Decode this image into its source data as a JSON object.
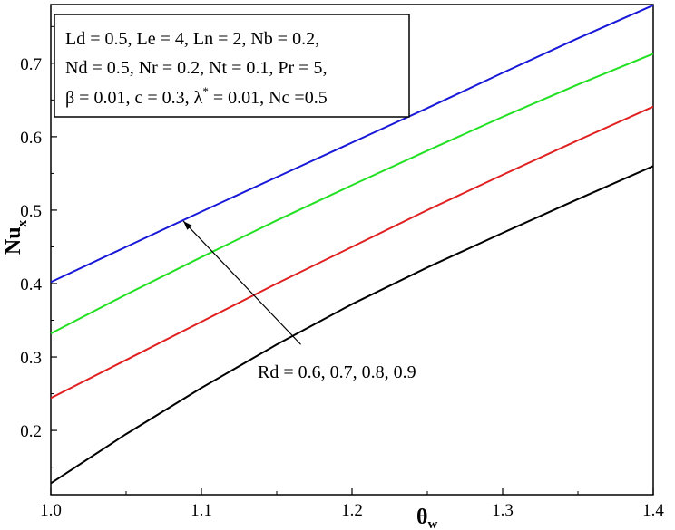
{
  "chart_data": {
    "type": "line",
    "xlabel": {
      "main": "θ",
      "sub": "w"
    },
    "ylabel": {
      "main": "Nu",
      "sub": "x"
    },
    "xlim": [
      1.0,
      1.4
    ],
    "ylim": [
      0.1125,
      0.78
    ],
    "xticks": [
      1.0,
      1.1,
      1.2,
      1.3,
      1.4
    ],
    "xtick_labels": [
      "1.0",
      "1.1",
      "1.2",
      "1.3",
      "1.4"
    ],
    "yticks": [
      0.2,
      0.3,
      0.4,
      0.5,
      0.6,
      0.7
    ],
    "ytick_labels": [
      "0.2",
      "0.3",
      "0.4",
      "0.5",
      "0.6",
      "0.7"
    ],
    "x": [
      1.0,
      1.05,
      1.1,
      1.15,
      1.2,
      1.25,
      1.3,
      1.35,
      1.4
    ],
    "series": [
      {
        "color": "#000000",
        "values": [
          0.128,
          0.195,
          0.258,
          0.317,
          0.372,
          0.422,
          0.469,
          0.515,
          0.56
        ]
      },
      {
        "color": "#e02020",
        "values": [
          0.244,
          0.296,
          0.348,
          0.4,
          0.45,
          0.5,
          0.548,
          0.595,
          0.641
        ]
      },
      {
        "color": "#22e022",
        "values": [
          0.332,
          0.385,
          0.436,
          0.486,
          0.534,
          0.581,
          0.627,
          0.671,
          0.713
        ]
      },
      {
        "color": "#1818d8",
        "values": [
          0.402,
          0.45,
          0.498,
          0.545,
          0.592,
          0.639,
          0.687,
          0.734,
          0.779
        ]
      }
    ],
    "params_lines": [
      "Ld = 0.5, Le = 4, Ln = 2, Nb = 0.2,",
      "Nd = 0.5, Nr = 0.2, Nt = 0.1, Pr = 5,"
    ],
    "params_line3": {
      "before": "β = 0.01, c = 0.3, λ",
      "sup": "*",
      "after": " = 0.01, Nc =0.5"
    },
    "annotation": {
      "text": "Rd = 0.6, 0.7, 0.8, 0.9",
      "arrow_from": [
        1.166,
        0.317
      ],
      "arrow_to": [
        1.088,
        0.485
      ]
    },
    "grid": false,
    "legend": "none"
  }
}
